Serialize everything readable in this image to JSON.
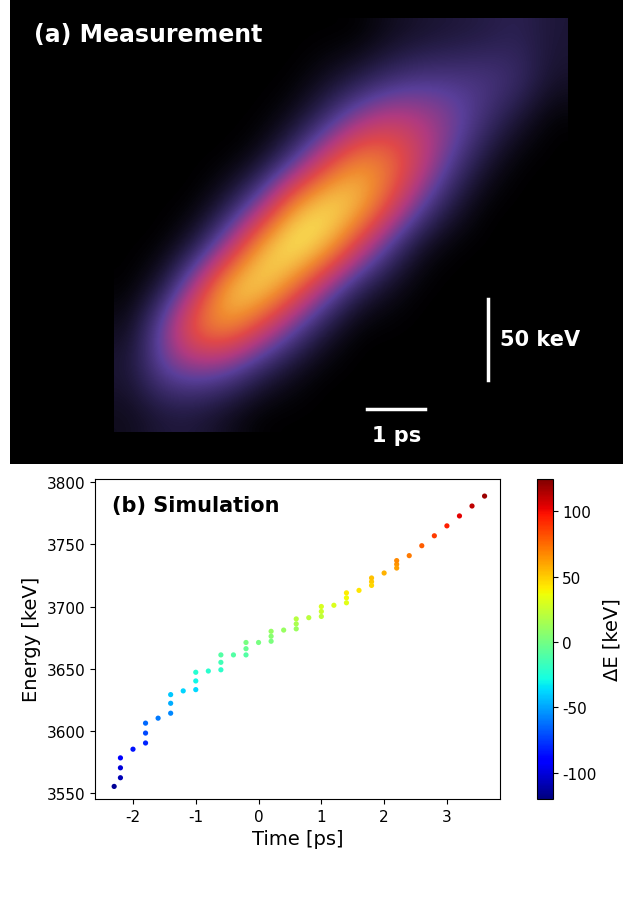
{
  "chart_data": [
    {
      "type": "heatmap",
      "title": "(a) Measurement",
      "tick_labels": false,
      "annotations": [
        "50 keV",
        "1 ps"
      ],
      "cells": [
        [
          0.05,
          0.1,
          0.1,
          0.05,
          0,
          0,
          0,
          0,
          0,
          0,
          0,
          0,
          0,
          0
        ],
        [
          0.1,
          0.3,
          0.35,
          0.3,
          0.15,
          0.05,
          0,
          0,
          0,
          0,
          0,
          0,
          0,
          0
        ],
        [
          0.05,
          0.35,
          0.7,
          0.75,
          0.55,
          0.3,
          0.1,
          0,
          0,
          0,
          0,
          0,
          0,
          0
        ],
        [
          0,
          0.1,
          0.45,
          0.85,
          0.9,
          0.7,
          0.4,
          0.15,
          0.05,
          0,
          0,
          0,
          0,
          0
        ],
        [
          0,
          0,
          0.1,
          0.4,
          0.8,
          0.95,
          0.85,
          0.55,
          0.25,
          0.05,
          0,
          0,
          0,
          0
        ],
        [
          0,
          0,
          0,
          0.1,
          0.35,
          0.75,
          0.9,
          0.85,
          0.6,
          0.3,
          0.1,
          0,
          0,
          0
        ],
        [
          0,
          0,
          0,
          0,
          0.05,
          0.25,
          0.55,
          0.75,
          0.7,
          0.5,
          0.25,
          0.08,
          0,
          0
        ],
        [
          0,
          0,
          0,
          0,
          0,
          0.05,
          0.2,
          0.4,
          0.5,
          0.45,
          0.35,
          0.2,
          0.08,
          0
        ],
        [
          0,
          0,
          0,
          0,
          0,
          0,
          0.05,
          0.12,
          0.2,
          0.25,
          0.25,
          0.25,
          0.2,
          0.08
        ],
        [
          0,
          0,
          0,
          0,
          0,
          0,
          0,
          0,
          0.05,
          0.08,
          0.1,
          0.12,
          0.15,
          0.1
        ]
      ]
    },
    {
      "type": "scatter",
      "title": "(b) Simulation",
      "x_label": "Time [ps]",
      "y_label": "Energy [keV]",
      "xlim": [
        -2.6,
        3.85
      ],
      "ylim": [
        3545,
        3803
      ],
      "xticks": [
        -2,
        -1,
        0,
        1,
        2,
        3
      ],
      "yticks": [
        3550,
        3600,
        3650,
        3700,
        3750,
        3800
      ],
      "x": [
        -2.3,
        -2.2,
        -2.0,
        -1.8,
        -1.6,
        -1.4,
        -1.2,
        -1.0,
        -0.8,
        -0.6,
        -0.4,
        -0.2,
        0.0,
        0.2,
        0.4,
        0.6,
        0.8,
        1.0,
        1.2,
        1.4,
        1.6,
        1.8,
        2.0,
        2.2,
        2.4,
        2.6,
        2.8,
        3.0,
        3.2,
        3.4,
        3.6,
        -2.2,
        -1.8,
        -1.4,
        -1.0,
        -0.6,
        -0.2,
        0.2,
        0.6,
        1.0,
        1.4,
        1.8,
        2.2,
        -2.2,
        -1.8,
        -1.4,
        -1.0,
        -0.6,
        -0.2,
        0.2,
        0.6,
        1.0,
        1.4,
        1.8,
        2.2
      ],
      "values": [
        3555,
        3570,
        3585,
        3598,
        3610,
        3622,
        3632,
        3640,
        3648,
        3655,
        3661,
        3666,
        3671,
        3676,
        3681,
        3686,
        3691,
        3696,
        3701,
        3707,
        3713,
        3720,
        3727,
        3734,
        3741,
        3749,
        3757,
        3765,
        3773,
        3781,
        3789,
        3578,
        3606,
        3629,
        3647,
        3661,
        3671,
        3680,
        3690,
        3700,
        3711,
        3723,
        3737,
        3562,
        3590,
        3614,
        3633,
        3649,
        3661,
        3672,
        3682,
        3692,
        3703,
        3717,
        3731
      ],
      "delta_e": [
        -115,
        -100,
        -85,
        -72,
        -60,
        -48,
        -38,
        -30,
        -22,
        -15,
        -9,
        -4,
        1,
        6,
        11,
        16,
        21,
        26,
        31,
        37,
        43,
        50,
        57,
        64,
        71,
        79,
        87,
        95,
        103,
        111,
        119,
        -92,
        -64,
        -41,
        -23,
        -9,
        1,
        10,
        20,
        30,
        41,
        53,
        67,
        -108,
        -80,
        -56,
        -37,
        -21,
        -9,
        2,
        12,
        22,
        33,
        47,
        61
      ],
      "colorbar": {
        "label": "ΔE [keV]",
        "range": [
          -120,
          125
        ],
        "ticks": [
          -100,
          -50,
          0,
          50,
          100
        ]
      }
    }
  ]
}
